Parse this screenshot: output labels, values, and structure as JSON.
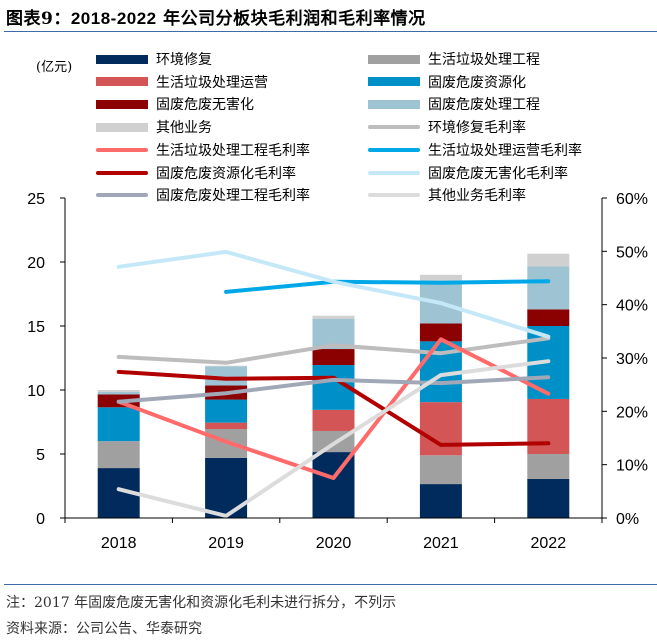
{
  "figure": {
    "title_prefix": "图表9：",
    "title_years": "2018-2022",
    "title_rest": " 年公司分板块毛利润和毛利率情况",
    "note": "注：2017 年固废危废无害化和资源化毛利未进行拆分，不列示",
    "source": "资料来源：公司公告、华泰研究"
  },
  "chart_data": {
    "type": "bar",
    "stacked": true,
    "title": "2018-2022 年公司分板块毛利润和毛利率情况",
    "categories": [
      "2018",
      "2019",
      "2020",
      "2021",
      "2022"
    ],
    "ylabel": "(亿元)",
    "ylim": [
      0,
      25
    ],
    "yticks": [
      0,
      5,
      10,
      15,
      20,
      25
    ],
    "y2lim": [
      0,
      60
    ],
    "y2ticks": [
      "0%",
      "10%",
      "20%",
      "30%",
      "40%",
      "50%",
      "60%"
    ],
    "grid": false,
    "legend_position": "top",
    "series": [
      {
        "name": "环境修复",
        "kind": "bar",
        "color": "#002b5c",
        "values": [
          3.9,
          4.7,
          5.15,
          2.65,
          3.05
        ]
      },
      {
        "name": "生活垃圾处理工程",
        "kind": "bar",
        "color": "#a0a0a0",
        "values": [
          2.1,
          2.25,
          1.65,
          2.25,
          1.95
        ]
      },
      {
        "name": "生活垃圾处理运营",
        "kind": "bar",
        "color": "#d45555",
        "values": [
          0,
          0.5,
          1.65,
          4.15,
          4.3
        ]
      },
      {
        "name": "固废危废资源化",
        "kind": "bar",
        "color": "#0090c8",
        "values": [
          2.65,
          1.8,
          3.5,
          4.75,
          5.7
        ]
      },
      {
        "name": "固废危废无害化",
        "kind": "bar",
        "color": "#8b0000",
        "values": [
          1.0,
          1.1,
          1.25,
          1.4,
          1.3
        ]
      },
      {
        "name": "固废危废处理工程",
        "kind": "bar",
        "color": "#9ec3d2",
        "values": [
          0.2,
          1.5,
          2.35,
          3.35,
          3.35
        ]
      },
      {
        "name": "其他业务",
        "kind": "bar",
        "color": "#d0d0d0",
        "values": [
          0.15,
          0.05,
          0.25,
          0.45,
          1.0
        ]
      },
      {
        "name": "环境修复毛利率",
        "kind": "line",
        "axis": "right",
        "color": "#bdbdbd",
        "values": [
          30.2,
          29.1,
          32.4,
          30.9,
          33.7
        ]
      },
      {
        "name": "生活垃圾处理工程毛利率",
        "kind": "line",
        "axis": "right",
        "color": "#ff6b6b",
        "values": [
          21.8,
          14.3,
          7.5,
          33.5,
          23.3
        ]
      },
      {
        "name": "生活垃圾处理运营毛利率",
        "kind": "line",
        "axis": "right",
        "color": "#00a8e8",
        "values": [
          null,
          42.4,
          44.3,
          44.1,
          44.4
        ]
      },
      {
        "name": "固废危废资源化毛利率",
        "kind": "line",
        "axis": "right",
        "color": "#b00000",
        "values": [
          27.4,
          26.1,
          26.3,
          13.7,
          14.0
        ]
      },
      {
        "name": "固废危废无害化毛利率",
        "kind": "line",
        "axis": "right",
        "color": "#c4e8f8",
        "values": [
          47.1,
          49.9,
          44.3,
          40.3,
          34.0
        ]
      },
      {
        "name": "固废危废处理工程毛利率",
        "kind": "line",
        "axis": "right",
        "color": "#a0a8b8",
        "values": [
          21.8,
          23.4,
          25.9,
          25.3,
          26.4
        ]
      },
      {
        "name": "其他业务毛利率",
        "kind": "line",
        "axis": "right",
        "color": "#dcdcdc",
        "values": [
          5.4,
          0.4,
          13.9,
          26.8,
          29.4
        ]
      }
    ]
  },
  "legend": [
    {
      "label": "环境修复",
      "type": "box",
      "color": "#002b5c"
    },
    {
      "label": "生活垃圾处理工程",
      "type": "box",
      "color": "#a0a0a0"
    },
    {
      "label": "生活垃圾处理运营",
      "type": "box",
      "color": "#d45555"
    },
    {
      "label": "固废危废资源化",
      "type": "box",
      "color": "#0090c8"
    },
    {
      "label": "固废危废无害化",
      "type": "box",
      "color": "#8b0000"
    },
    {
      "label": "固废危废处理工程",
      "type": "box",
      "color": "#9ec3d2"
    },
    {
      "label": "其他业务",
      "type": "box",
      "color": "#d0d0d0"
    },
    {
      "label": "环境修复毛利率",
      "type": "line",
      "color": "#bdbdbd"
    },
    {
      "label": "生活垃圾处理工程毛利率",
      "type": "line",
      "color": "#ff6b6b"
    },
    {
      "label": "生活垃圾处理运营毛利率",
      "type": "line",
      "color": "#00a8e8"
    },
    {
      "label": "固废危废资源化毛利率",
      "type": "line",
      "color": "#b00000"
    },
    {
      "label": "固废危废无害化毛利率",
      "type": "line",
      "color": "#c4e8f8"
    },
    {
      "label": "固废危废处理工程毛利率",
      "type": "line",
      "color": "#a0a8b8"
    },
    {
      "label": "其他业务毛利率",
      "type": "line",
      "color": "#dcdcdc"
    }
  ]
}
